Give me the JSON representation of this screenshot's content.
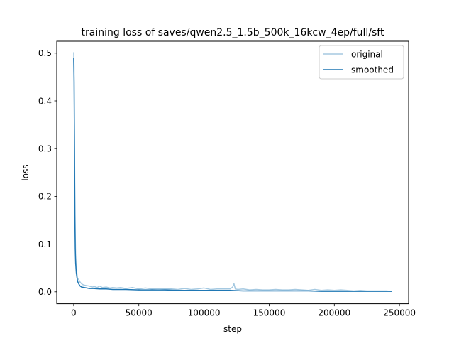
{
  "chart_data": {
    "type": "line",
    "title": "training loss of saves/qwen2.5_1.5b_500k_16kcw_4ep/full/sft",
    "xlabel": "step",
    "ylabel": "loss",
    "xlim": [
      -13000,
      257000
    ],
    "ylim": [
      -0.025,
      0.525
    ],
    "xticks": [
      0,
      50000,
      100000,
      150000,
      200000,
      250000
    ],
    "xtick_labels": [
      "0",
      "50000",
      "100000",
      "150000",
      "200000",
      "250000"
    ],
    "yticks": [
      0.0,
      0.1,
      0.2,
      0.3,
      0.4,
      0.5
    ],
    "ytick_labels": [
      "0.0",
      "0.1",
      "0.2",
      "0.3",
      "0.4",
      "0.5"
    ],
    "grid": false,
    "legend_position": "top-right",
    "series": [
      {
        "name": "original",
        "color": "#1f77b4",
        "opacity": 0.4,
        "x": [
          0,
          300,
          600,
          900,
          1200,
          1500,
          2000,
          2500,
          3000,
          4000,
          5000,
          6000,
          7000,
          8000,
          10000,
          12000,
          14000,
          16000,
          18000,
          20000,
          22000,
          25000,
          28000,
          30000,
          33000,
          36000,
          40000,
          45000,
          50000,
          55000,
          60000,
          65000,
          70000,
          75000,
          80000,
          85000,
          90000,
          95000,
          100000,
          105000,
          110000,
          115000,
          120000,
          122000,
          123000,
          124000,
          126000,
          130000,
          135000,
          140000,
          145000,
          150000,
          155000,
          160000,
          165000,
          170000,
          175000,
          180000,
          185000,
          190000,
          195000,
          200000,
          205000,
          210000,
          215000,
          220000,
          225000,
          230000,
          235000,
          240000,
          244000
        ],
        "y": [
          0.502,
          0.47,
          0.33,
          0.2,
          0.12,
          0.075,
          0.05,
          0.038,
          0.028,
          0.025,
          0.02,
          0.017,
          0.015,
          0.014,
          0.013,
          0.012,
          0.01,
          0.011,
          0.009,
          0.012,
          0.009,
          0.01,
          0.008,
          0.009,
          0.008,
          0.009,
          0.007,
          0.009,
          0.006,
          0.008,
          0.006,
          0.007,
          0.006,
          0.006,
          0.005,
          0.007,
          0.005,
          0.006,
          0.008,
          0.005,
          0.006,
          0.006,
          0.006,
          0.01,
          0.017,
          0.006,
          0.005,
          0.006,
          0.004,
          0.005,
          0.004,
          0.004,
          0.005,
          0.004,
          0.004,
          0.005,
          0.004,
          0.003,
          0.005,
          0.003,
          0.004,
          0.003,
          0.004,
          0.003,
          0.002,
          0.003,
          0.002,
          0.002,
          0.002,
          0.002,
          0.001
        ]
      },
      {
        "name": "smoothed",
        "color": "#1f77b4",
        "opacity": 1.0,
        "x": [
          0,
          300,
          600,
          900,
          1200,
          1500,
          2000,
          2500,
          3000,
          4000,
          5000,
          6000,
          8000,
          10000,
          12000,
          15000,
          20000,
          25000,
          30000,
          40000,
          50000,
          60000,
          70000,
          80000,
          90000,
          100000,
          110000,
          120000,
          130000,
          140000,
          150000,
          160000,
          170000,
          180000,
          190000,
          200000,
          210000,
          220000,
          230000,
          240000,
          244000
        ],
        "y": [
          0.49,
          0.44,
          0.3,
          0.16,
          0.09,
          0.06,
          0.04,
          0.03,
          0.022,
          0.016,
          0.012,
          0.01,
          0.009,
          0.008,
          0.007,
          0.007,
          0.006,
          0.006,
          0.005,
          0.005,
          0.004,
          0.004,
          0.004,
          0.003,
          0.003,
          0.003,
          0.003,
          0.003,
          0.002,
          0.002,
          0.002,
          0.002,
          0.002,
          0.002,
          0.001,
          0.001,
          0.001,
          0.001,
          0.001,
          0.001,
          0.001
        ]
      }
    ]
  }
}
